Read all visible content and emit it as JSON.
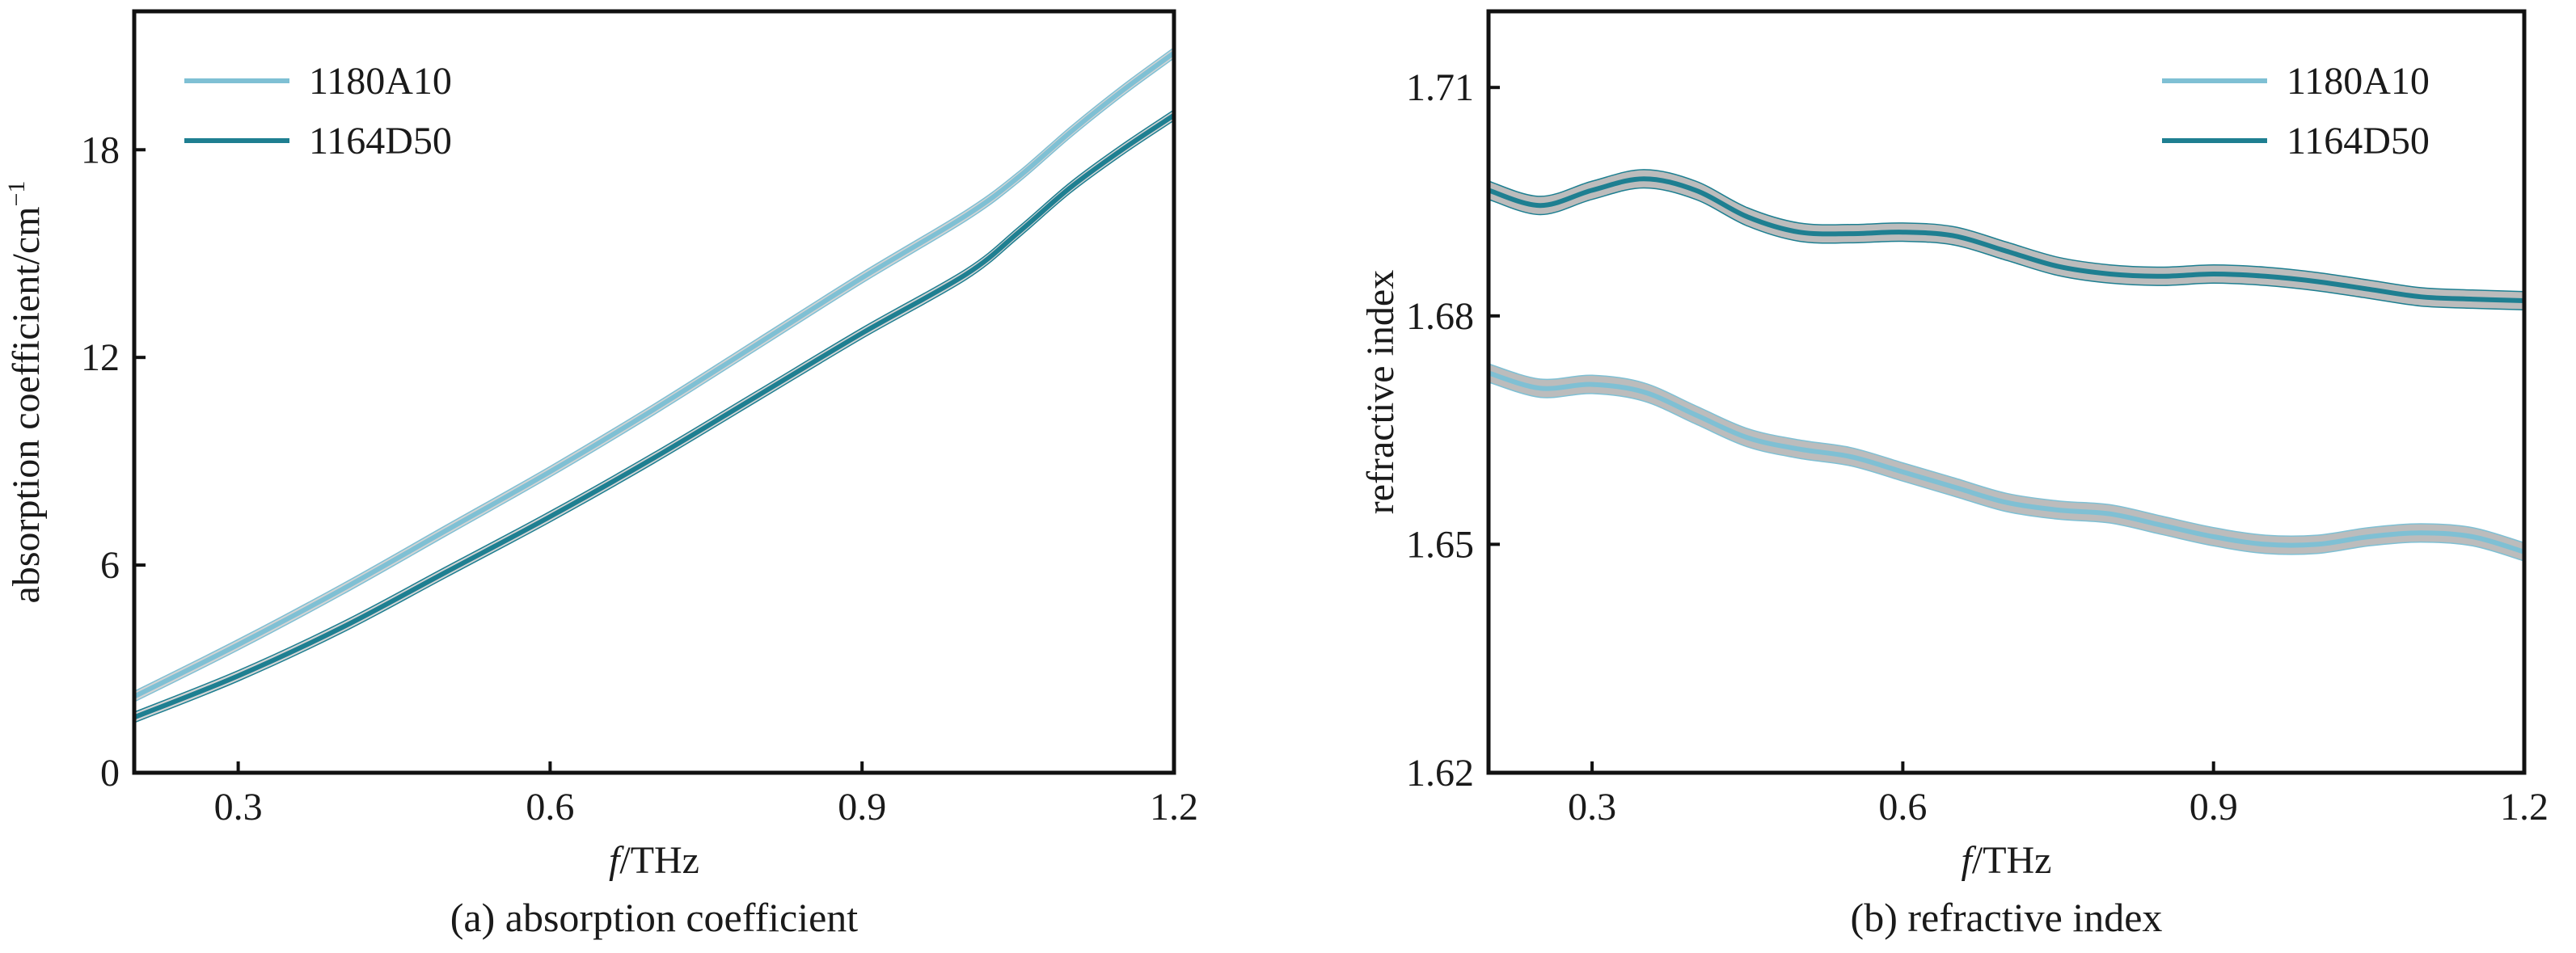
{
  "chart_data": [
    {
      "type": "line",
      "caption": "(a) absorption coefficient",
      "xlabel_italic": "f",
      "xlabel_rest": "/THz",
      "ylabel": "absorption coefficient/cm",
      "ylabel_sup": "−1",
      "xlim": [
        0.2,
        1.2
      ],
      "ylim": [
        0,
        22
      ],
      "xticks": [
        0.3,
        0.6,
        0.9,
        1.2
      ],
      "xtick_labels": [
        "0.3",
        "0.6",
        "0.9",
        "1.2"
      ],
      "yticks": [
        0,
        6,
        12,
        18
      ],
      "ytick_labels": [
        "0",
        "6",
        "12",
        "18"
      ],
      "legend_position": "top-left",
      "grid": false,
      "series": [
        {
          "name": "1180A10",
          "color": "#7fc0d4",
          "x": [
            0.2,
            0.3,
            0.4,
            0.5,
            0.6,
            0.7,
            0.8,
            0.9,
            1.0,
            1.05,
            1.1,
            1.15,
            1.2
          ],
          "y": [
            2.2,
            3.7,
            5.3,
            7.0,
            8.7,
            10.5,
            12.4,
            14.3,
            16.1,
            17.2,
            18.5,
            19.7,
            20.8
          ],
          "band": 0.15
        },
        {
          "name": "1164D50",
          "color": "#1e7f91",
          "x": [
            0.2,
            0.3,
            0.4,
            0.5,
            0.6,
            0.7,
            0.8,
            0.9,
            1.0,
            1.05,
            1.1,
            1.15,
            1.2
          ],
          "y": [
            1.6,
            2.8,
            4.2,
            5.8,
            7.4,
            9.1,
            10.9,
            12.7,
            14.4,
            15.6,
            16.9,
            18.0,
            19.0
          ],
          "band": 0.15
        }
      ]
    },
    {
      "type": "line",
      "caption": "(b) refractive index",
      "xlabel_italic": "f",
      "xlabel_rest": "/THz",
      "ylabel": "refractive index",
      "xlim": [
        0.2,
        1.2
      ],
      "ylim": [
        1.62,
        1.72
      ],
      "xticks": [
        0.3,
        0.6,
        0.9,
        1.2
      ],
      "xtick_labels": [
        "0.3",
        "0.6",
        "0.9",
        "1.2"
      ],
      "yticks": [
        1.62,
        1.65,
        1.68,
        1.71
      ],
      "ytick_labels": [
        "1.62",
        "1.65",
        "1.68",
        "1.71"
      ],
      "legend_position": "top-right",
      "grid": false,
      "series": [
        {
          "name": "1180A10",
          "color": "#7fc0d4",
          "x": [
            0.2,
            0.25,
            0.3,
            0.35,
            0.4,
            0.45,
            0.5,
            0.55,
            0.6,
            0.65,
            0.7,
            0.75,
            0.8,
            0.85,
            0.9,
            0.95,
            1.0,
            1.05,
            1.1,
            1.15,
            1.2
          ],
          "y": [
            1.6725,
            1.6705,
            1.671,
            1.67,
            1.667,
            1.664,
            1.6625,
            1.6615,
            1.6595,
            1.6575,
            1.6555,
            1.6545,
            1.654,
            1.6525,
            1.651,
            1.65,
            1.65,
            1.651,
            1.6515,
            1.651,
            1.649
          ],
          "band": 0.0012
        },
        {
          "name": "1164D50",
          "color": "#1e7f91",
          "x": [
            0.2,
            0.25,
            0.3,
            0.35,
            0.4,
            0.45,
            0.5,
            0.55,
            0.6,
            0.65,
            0.7,
            0.75,
            0.8,
            0.85,
            0.9,
            0.95,
            1.0,
            1.05,
            1.1,
            1.15,
            1.2
          ],
          "y": [
            1.6965,
            1.6945,
            1.6965,
            1.698,
            1.6965,
            1.693,
            1.691,
            1.6908,
            1.691,
            1.6905,
            1.6885,
            1.6865,
            1.6855,
            1.6852,
            1.6855,
            1.6852,
            1.6845,
            1.6835,
            1.6825,
            1.6822,
            1.682
          ],
          "band": 0.0012
        }
      ]
    }
  ]
}
